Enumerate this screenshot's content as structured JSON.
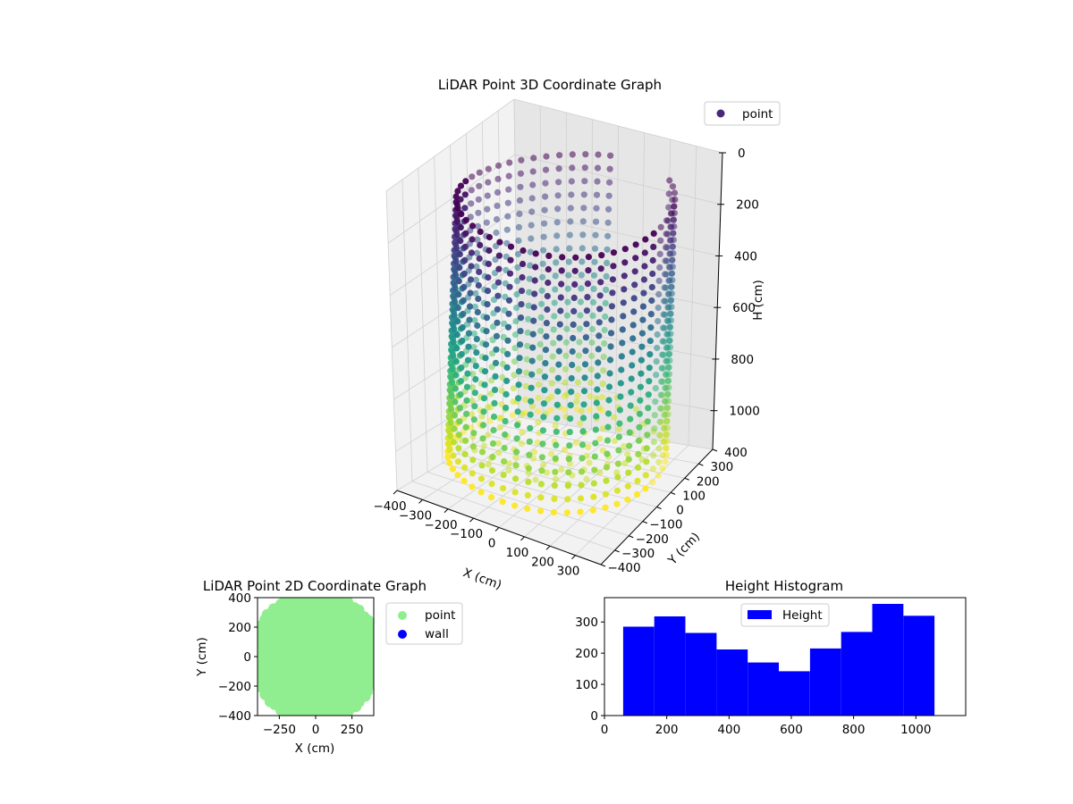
{
  "chart_data": [
    {
      "type": "scatter3d",
      "title": "LiDAR Point 3D Coordinate Graph",
      "xlabel": "X (cm)",
      "ylabel": "Y (cm)",
      "zlabel": "H (cm)",
      "xticks": [
        -400,
        -300,
        -200,
        -100,
        0,
        100,
        200,
        300
      ],
      "yticks": [
        -400,
        -300,
        -200,
        -100,
        0,
        100,
        200,
        300,
        400
      ],
      "zticks": [
        0,
        200,
        400,
        600,
        800,
        1000
      ],
      "xlim": [
        -400,
        400
      ],
      "ylim": [
        -400,
        400
      ],
      "zlim": [
        0,
        1150
      ],
      "z_inverted": true,
      "colormap": "viridis",
      "legend": [
        {
          "name": "point",
          "color": "#482878"
        }
      ],
      "legend_position": "top-right",
      "grid": true,
      "shape": {
        "kind": "cylindrical-shell",
        "radius_cm": 380,
        "height_range_cm": [
          80,
          1060
        ],
        "gap_sector_deg": [
          55,
          95
        ]
      }
    },
    {
      "type": "scatter",
      "title": "LiDAR Point 2D Coordinate Graph",
      "xlabel": "X (cm)",
      "ylabel": "Y (cm)",
      "xticks": [
        -250,
        0,
        250
      ],
      "yticks": [
        -400,
        -200,
        0,
        200,
        400
      ],
      "xlim": [
        -400,
        400
      ],
      "ylim": [
        -400,
        400
      ],
      "series": [
        {
          "name": "point",
          "color": "#90ee90"
        },
        {
          "name": "wall",
          "color": "#0000ff"
        }
      ],
      "legend_position": "outside-right"
    },
    {
      "type": "bar",
      "title": "Height Histogram",
      "xticks": [
        0,
        200,
        400,
        600,
        800,
        1000
      ],
      "yticks": [
        0,
        100,
        200,
        300
      ],
      "xlim": [
        0,
        1160
      ],
      "ylim": [
        0,
        378
      ],
      "bin_edges": [
        60,
        160,
        260,
        360,
        460,
        560,
        660,
        760,
        860,
        960,
        1060
      ],
      "series": [
        {
          "name": "Height",
          "color": "#0000ff",
          "values": [
            285,
            318,
            265,
            212,
            170,
            142,
            215,
            268,
            358,
            320
          ]
        }
      ],
      "legend_position": "top-center"
    }
  ]
}
